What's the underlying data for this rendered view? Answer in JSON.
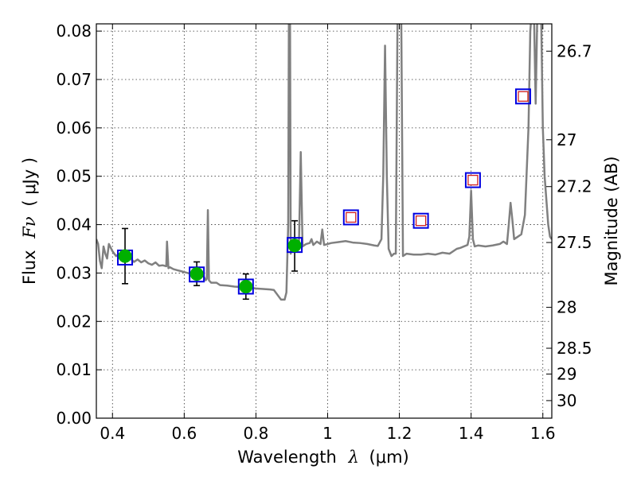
{
  "chart_data": {
    "type": "scatter",
    "xlabel_text": "Wavelength",
    "xlabel_symbol": "λ",
    "xlabel_unit": "(μm)",
    "ylabel_text": "Flux",
    "ylabel_symbol": "Fν",
    "ylabel_unit": "( μJy )",
    "y2label": "Magnitude (AB)",
    "xlim": [
      0.355,
      1.625
    ],
    "ylim": [
      0.0,
      0.0815
    ],
    "x_ticks": [
      0.4,
      0.6,
      0.8,
      1.0,
      1.2,
      1.4,
      1.6
    ],
    "x_tick_labels": [
      "0.4",
      "0.6",
      "0.8",
      "1",
      "1.2",
      "1.4",
      "1.6"
    ],
    "y_ticks": [
      0.0,
      0.01,
      0.02,
      0.03,
      0.04,
      0.05,
      0.06,
      0.07,
      0.08
    ],
    "y_tick_labels": [
      "0.00",
      "0.01",
      "0.02",
      "0.03",
      "0.04",
      "0.05",
      "0.06",
      "0.07",
      "0.08"
    ],
    "mag_ticks": [
      26.7,
      27,
      27.2,
      27.5,
      28,
      28.5,
      29,
      30
    ],
    "mag_tick_labels": [
      "26.7",
      "27",
      "27.2",
      "27.5",
      "28",
      "28.5",
      "29",
      "30"
    ],
    "grid": true,
    "colors": {
      "spectrum": "#808080",
      "observed_fill": "#00b000",
      "box_edge": "#0000e0",
      "open_marker": "#d02020",
      "errorbar": "#000000"
    },
    "spectrum": [
      [
        0.355,
        0.037
      ],
      [
        0.36,
        0.036
      ],
      [
        0.365,
        0.0325
      ],
      [
        0.37,
        0.031
      ],
      [
        0.375,
        0.0355
      ],
      [
        0.38,
        0.034
      ],
      [
        0.385,
        0.033
      ],
      [
        0.39,
        0.036
      ],
      [
        0.4,
        0.0345
      ],
      [
        0.41,
        0.0335
      ],
      [
        0.42,
        0.034
      ],
      [
        0.43,
        0.0332
      ],
      [
        0.44,
        0.0325
      ],
      [
        0.45,
        0.033
      ],
      [
        0.46,
        0.0323
      ],
      [
        0.47,
        0.0328
      ],
      [
        0.48,
        0.0322
      ],
      [
        0.49,
        0.0326
      ],
      [
        0.5,
        0.032
      ],
      [
        0.51,
        0.0317
      ],
      [
        0.52,
        0.0322
      ],
      [
        0.53,
        0.0315
      ],
      [
        0.54,
        0.0316
      ],
      [
        0.55,
        0.0314
      ],
      [
        0.552,
        0.0365
      ],
      [
        0.556,
        0.031
      ],
      [
        0.56,
        0.0312
      ],
      [
        0.57,
        0.0308
      ],
      [
        0.58,
        0.0306
      ],
      [
        0.59,
        0.0304
      ],
      [
        0.6,
        0.0302
      ],
      [
        0.61,
        0.03
      ],
      [
        0.62,
        0.0298
      ],
      [
        0.63,
        0.0297
      ],
      [
        0.64,
        0.0296
      ],
      [
        0.65,
        0.0294
      ],
      [
        0.655,
        0.0292
      ],
      [
        0.66,
        0.0285
      ],
      [
        0.663,
        0.0288
      ],
      [
        0.666,
        0.043
      ],
      [
        0.669,
        0.0285
      ],
      [
        0.675,
        0.028
      ],
      [
        0.69,
        0.028
      ],
      [
        0.7,
        0.0275
      ],
      [
        0.72,
        0.0274
      ],
      [
        0.74,
        0.0272
      ],
      [
        0.76,
        0.0271
      ],
      [
        0.78,
        0.027
      ],
      [
        0.8,
        0.0268
      ],
      [
        0.82,
        0.0267
      ],
      [
        0.84,
        0.0266
      ],
      [
        0.85,
        0.0265
      ],
      [
        0.86,
        0.0255
      ],
      [
        0.87,
        0.0245
      ],
      [
        0.88,
        0.0245
      ],
      [
        0.885,
        0.026
      ],
      [
        0.89,
        0.04
      ],
      [
        0.892,
        0.085
      ],
      [
        0.895,
        0.085
      ],
      [
        0.897,
        0.034
      ],
      [
        0.9,
        0.035
      ],
      [
        0.91,
        0.0348
      ],
      [
        0.92,
        0.036
      ],
      [
        0.925,
        0.055
      ],
      [
        0.93,
        0.0355
      ],
      [
        0.94,
        0.036
      ],
      [
        0.95,
        0.0362
      ],
      [
        0.955,
        0.037
      ],
      [
        0.96,
        0.0358
      ],
      [
        0.97,
        0.0365
      ],
      [
        0.98,
        0.036
      ],
      [
        0.985,
        0.039
      ],
      [
        0.99,
        0.0358
      ],
      [
        1.0,
        0.036
      ],
      [
        1.01,
        0.0362
      ],
      [
        1.03,
        0.0364
      ],
      [
        1.05,
        0.0366
      ],
      [
        1.07,
        0.0363
      ],
      [
        1.09,
        0.0362
      ],
      [
        1.11,
        0.036
      ],
      [
        1.13,
        0.0357
      ],
      [
        1.14,
        0.0356
      ],
      [
        1.15,
        0.037
      ],
      [
        1.155,
        0.05
      ],
      [
        1.16,
        0.077
      ],
      [
        1.165,
        0.05
      ],
      [
        1.17,
        0.035
      ],
      [
        1.178,
        0.0335
      ],
      [
        1.185,
        0.034
      ],
      [
        1.19,
        0.034
      ],
      [
        1.195,
        0.085
      ],
      [
        1.205,
        0.085
      ],
      [
        1.21,
        0.0335
      ],
      [
        1.22,
        0.034
      ],
      [
        1.24,
        0.0338
      ],
      [
        1.26,
        0.0338
      ],
      [
        1.28,
        0.034
      ],
      [
        1.3,
        0.0338
      ],
      [
        1.32,
        0.0342
      ],
      [
        1.34,
        0.034
      ],
      [
        1.36,
        0.035
      ],
      [
        1.37,
        0.0352
      ],
      [
        1.38,
        0.0355
      ],
      [
        1.39,
        0.0358
      ],
      [
        1.395,
        0.0375
      ],
      [
        1.4,
        0.047
      ],
      [
        1.405,
        0.037
      ],
      [
        1.41,
        0.0355
      ],
      [
        1.42,
        0.0357
      ],
      [
        1.44,
        0.0355
      ],
      [
        1.46,
        0.0357
      ],
      [
        1.48,
        0.036
      ],
      [
        1.49,
        0.0365
      ],
      [
        1.5,
        0.036
      ],
      [
        1.505,
        0.04
      ],
      [
        1.51,
        0.0445
      ],
      [
        1.515,
        0.041
      ],
      [
        1.52,
        0.037
      ],
      [
        1.53,
        0.0375
      ],
      [
        1.54,
        0.038
      ],
      [
        1.55,
        0.042
      ],
      [
        1.56,
        0.06
      ],
      [
        1.565,
        0.08
      ],
      [
        1.57,
        0.085
      ],
      [
        1.575,
        0.085
      ],
      [
        1.58,
        0.065
      ],
      [
        1.585,
        0.085
      ],
      [
        1.595,
        0.085
      ],
      [
        1.6,
        0.06
      ],
      [
        1.605,
        0.05
      ],
      [
        1.61,
        0.045
      ],
      [
        1.615,
        0.04
      ],
      [
        1.62,
        0.0375
      ],
      [
        1.625,
        0.037
      ]
    ],
    "observed": [
      {
        "x": 0.435,
        "y": 0.0335,
        "err_lo": 0.0278,
        "err_hi": 0.0392
      },
      {
        "x": 0.635,
        "y": 0.0298,
        "err_lo": 0.0274,
        "err_hi": 0.0323
      },
      {
        "x": 0.772,
        "y": 0.0272,
        "err_lo": 0.0246,
        "err_hi": 0.0298
      },
      {
        "x": 0.908,
        "y": 0.0357,
        "err_lo": 0.0304,
        "err_hi": 0.0408
      }
    ],
    "model_boxes": [
      {
        "x": 0.435,
        "y": 0.0332
      },
      {
        "x": 0.635,
        "y": 0.0297
      },
      {
        "x": 0.772,
        "y": 0.0272
      },
      {
        "x": 0.908,
        "y": 0.0358
      },
      {
        "x": 1.065,
        "y": 0.0415
      },
      {
        "x": 1.26,
        "y": 0.0408
      },
      {
        "x": 1.405,
        "y": 0.0492
      },
      {
        "x": 1.545,
        "y": 0.0665
      }
    ],
    "predicted_open": [
      {
        "x": 1.065,
        "y": 0.0415
      },
      {
        "x": 1.26,
        "y": 0.0408
      },
      {
        "x": 1.405,
        "y": 0.0492
      },
      {
        "x": 1.545,
        "y": 0.0665
      }
    ]
  }
}
